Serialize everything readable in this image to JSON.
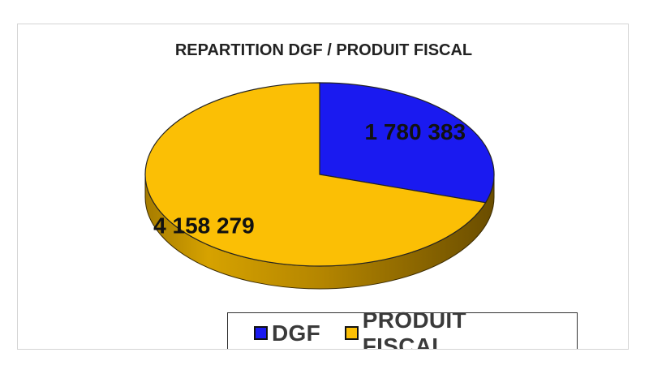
{
  "chart_data": {
    "type": "pie",
    "title": "REPARTITION DGF / PRODUIT FISCAL",
    "slices": [
      {
        "name": "DGF",
        "value": 1780383,
        "label": "1 780 383",
        "color": "#1a1af0"
      },
      {
        "name": "PRODUIT FISCAL",
        "value": 4158279,
        "label": "4 158 279",
        "color": "#fbbf05"
      }
    ],
    "legend_position": "bottom-right",
    "style": "3d"
  }
}
